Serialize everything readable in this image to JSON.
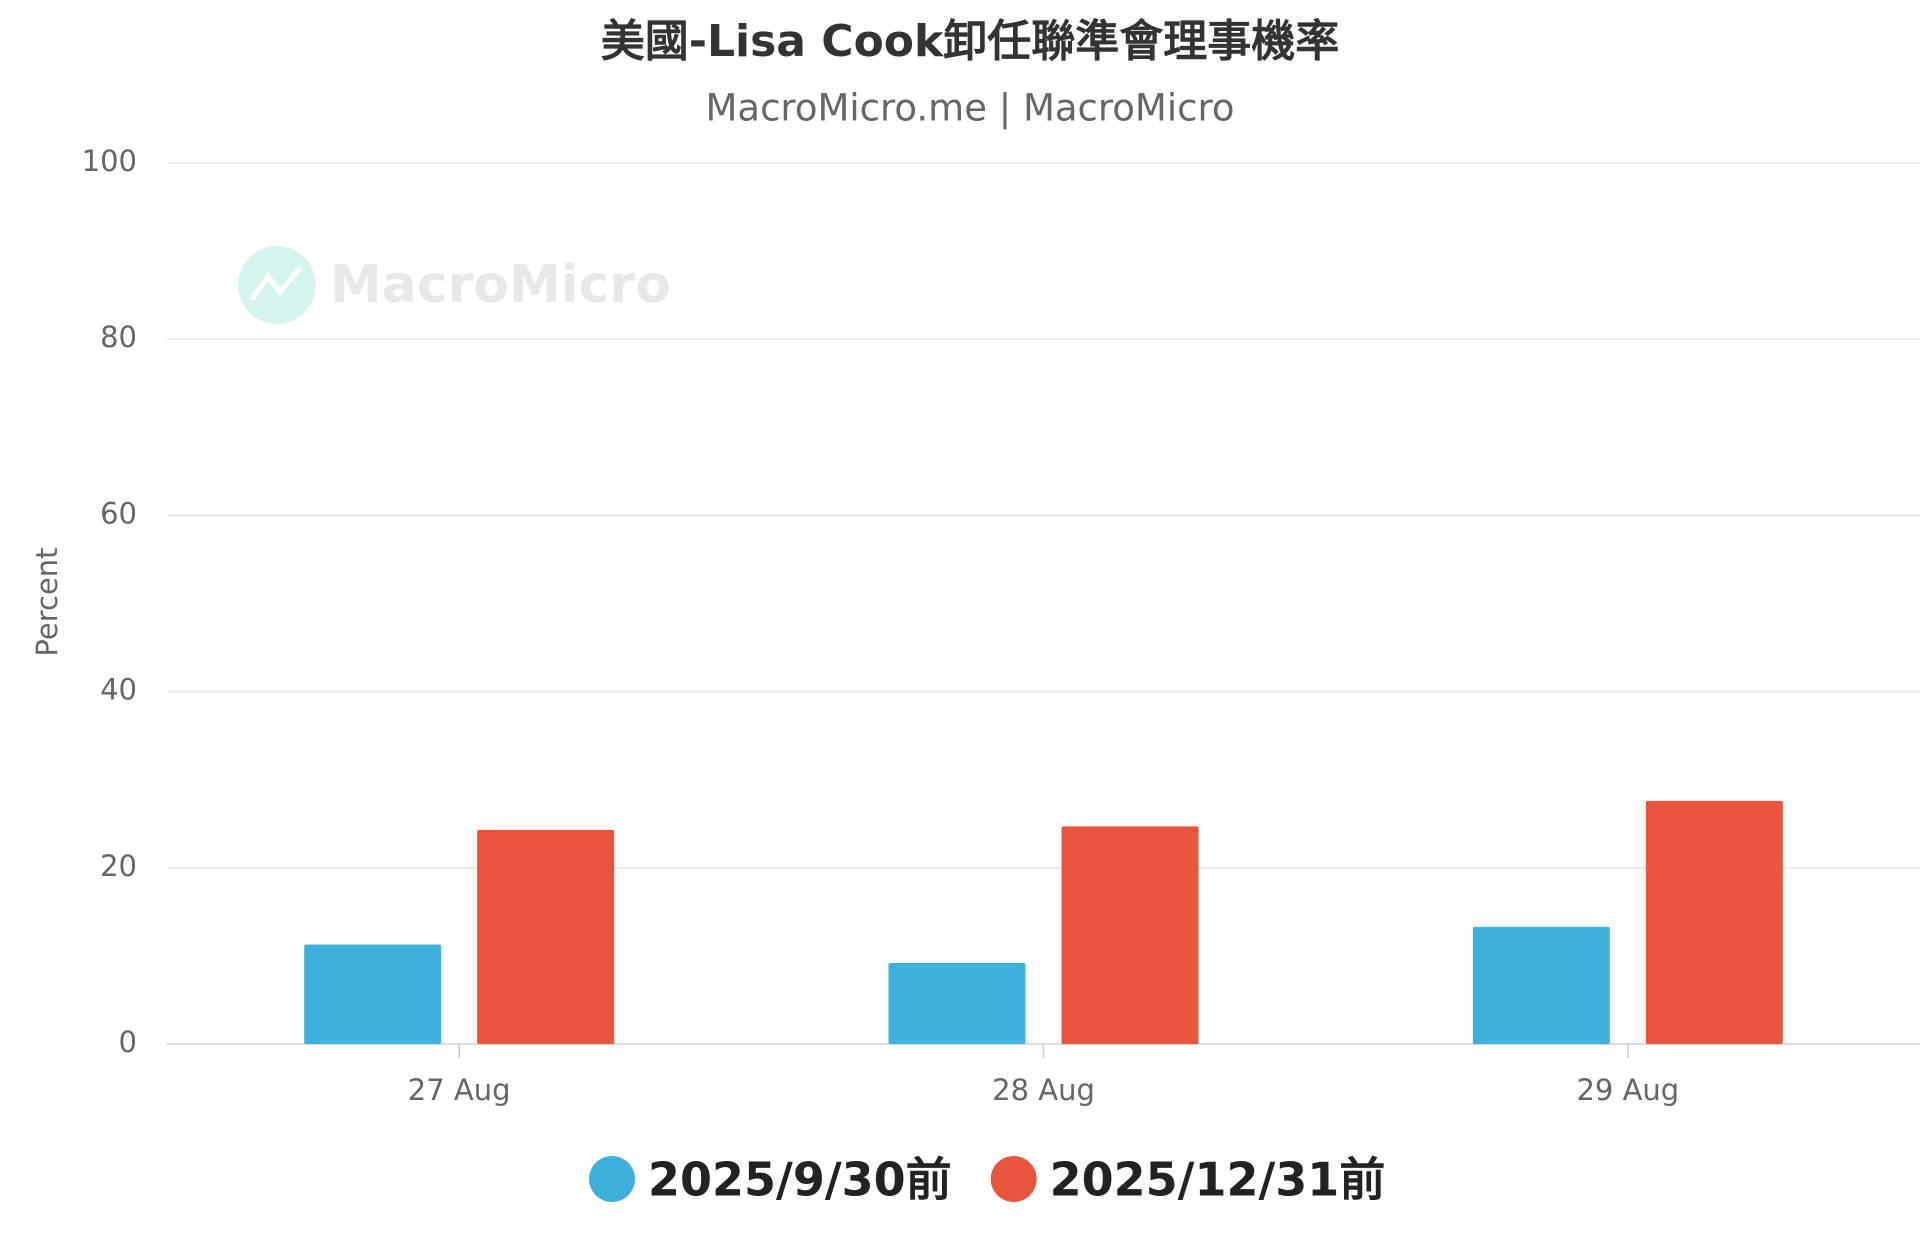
{
  "chart_data": {
    "type": "bar",
    "title": "美國-Lisa Cook卸任聯準會理事機率",
    "subtitle": "MacroMicro.me | MacroMicro",
    "watermark": "MacroMicro",
    "y_label": "Percent",
    "categories": [
      "27 Aug",
      "28 Aug",
      "29 Aug"
    ],
    "series": [
      {
        "name": "2025/9/30前",
        "color": "#3db0dc",
        "values": [
          11.3,
          9.2,
          13.3
        ]
      },
      {
        "name": "2025/12/31前",
        "color": "#e8553e",
        "values": [
          24.3,
          24.7,
          27.6
        ]
      }
    ],
    "ylim": [
      0,
      100
    ],
    "yticks": [
      0,
      20,
      40,
      60,
      80,
      100
    ],
    "grid": true,
    "legend": "bottom"
  }
}
